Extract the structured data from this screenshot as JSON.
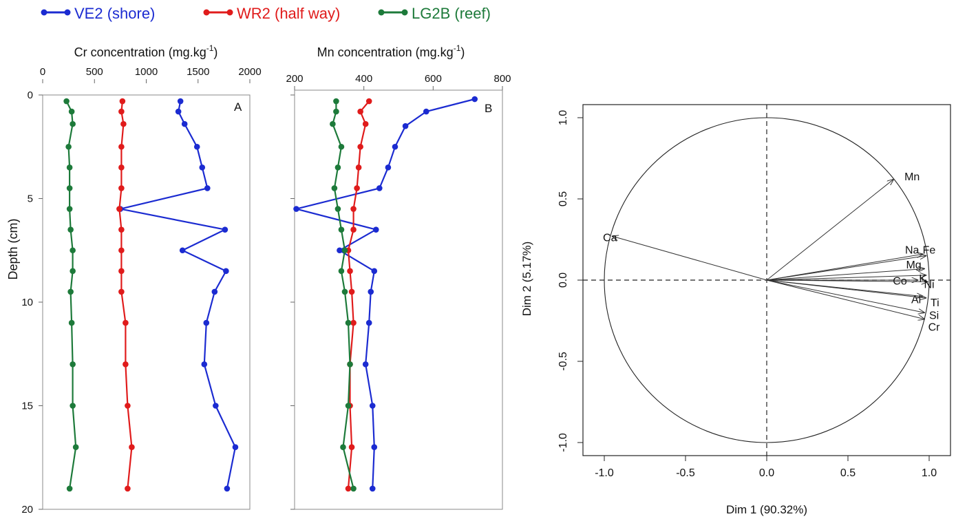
{
  "legend": {
    "items": [
      {
        "label": "VE2 (shore)",
        "color": "#1b2bd1"
      },
      {
        "label": "WR2 (half way)",
        "color": "#e01b1b"
      },
      {
        "label": "LG2B (reef)",
        "color": "#1d7a3a"
      }
    ]
  },
  "chart_data": [
    {
      "type": "line",
      "panel_label": "A",
      "title": "Cr concentration (mg.kg",
      "title_superscript": "-1",
      "title_suffix": ")",
      "xlabel": "",
      "ylabel": "Depth (cm)",
      "xlim": [
        0,
        2000
      ],
      "ylim": [
        20,
        0
      ],
      "xticks": [
        "0",
        "500",
        "1000",
        "1500",
        "2000"
      ],
      "yticks": [
        "0",
        "5",
        "10",
        "15",
        "20"
      ],
      "grid": false,
      "series": [
        {
          "name": "VE2 (shore)",
          "color": "#1b2bd1",
          "points": [
            [
              1330,
              0.3
            ],
            [
              1310,
              0.8
            ],
            [
              1370,
              1.4
            ],
            [
              1490,
              2.5
            ],
            [
              1540,
              3.5
            ],
            [
              1590,
              4.5
            ],
            [
              750,
              5.5
            ],
            [
              1760,
              6.5
            ],
            [
              1350,
              7.5
            ],
            [
              1770,
              8.5
            ],
            [
              1660,
              9.5
            ],
            [
              1580,
              11
            ],
            [
              1560,
              13
            ],
            [
              1670,
              15
            ],
            [
              1860,
              17
            ],
            [
              1780,
              19
            ]
          ]
        },
        {
          "name": "WR2 (half way)",
          "color": "#e01b1b",
          "points": [
            [
              770,
              0.3
            ],
            [
              760,
              0.8
            ],
            [
              780,
              1.4
            ],
            [
              760,
              2.5
            ],
            [
              760,
              3.5
            ],
            [
              760,
              4.5
            ],
            [
              740,
              5.5
            ],
            [
              760,
              6.5
            ],
            [
              760,
              7.5
            ],
            [
              760,
              8.5
            ],
            [
              760,
              9.5
            ],
            [
              800,
              11
            ],
            [
              800,
              13
            ],
            [
              820,
              15
            ],
            [
              860,
              17
            ],
            [
              820,
              19
            ]
          ]
        },
        {
          "name": "LG2B (reef)",
          "color": "#1d7a3a",
          "points": [
            [
              230,
              0.3
            ],
            [
              280,
              0.8
            ],
            [
              290,
              1.4
            ],
            [
              250,
              2.5
            ],
            [
              260,
              3.5
            ],
            [
              260,
              4.5
            ],
            [
              260,
              5.5
            ],
            [
              270,
              6.5
            ],
            [
              290,
              7.5
            ],
            [
              290,
              8.5
            ],
            [
              270,
              9.5
            ],
            [
              280,
              11
            ],
            [
              290,
              13
            ],
            [
              290,
              15
            ],
            [
              320,
              17
            ],
            [
              260,
              19
            ]
          ]
        }
      ]
    },
    {
      "type": "line",
      "panel_label": "B",
      "title": "Mn concentration (mg.kg",
      "title_superscript": "-1",
      "title_suffix": ")",
      "xlabel": "",
      "ylabel": "",
      "xlim": [
        200,
        800
      ],
      "ylim": [
        20,
        0
      ],
      "xticks": [
        "200",
        "400",
        "600",
        "800"
      ],
      "grid": false,
      "series": [
        {
          "name": "VE2 (shore)",
          "color": "#1b2bd1",
          "points": [
            [
              720,
              0.2
            ],
            [
              580,
              0.8
            ],
            [
              520,
              1.5
            ],
            [
              490,
              2.5
            ],
            [
              470,
              3.5
            ],
            [
              445,
              4.5
            ],
            [
              205,
              5.5
            ],
            [
              435,
              6.5
            ],
            [
              330,
              7.5
            ],
            [
              430,
              8.5
            ],
            [
              420,
              9.5
            ],
            [
              415,
              11
            ],
            [
              405,
              13
            ],
            [
              425,
              15
            ],
            [
              430,
              17
            ],
            [
              425,
              19
            ]
          ]
        },
        {
          "name": "WR2 (half way)",
          "color": "#e01b1b",
          "points": [
            [
              415,
              0.3
            ],
            [
              390,
              0.8
            ],
            [
              405,
              1.4
            ],
            [
              390,
              2.5
            ],
            [
              385,
              3.5
            ],
            [
              380,
              4.5
            ],
            [
              370,
              5.5
            ],
            [
              370,
              6.5
            ],
            [
              355,
              7.5
            ],
            [
              360,
              8.5
            ],
            [
              365,
              9.5
            ],
            [
              370,
              11
            ],
            [
              360,
              13
            ],
            [
              360,
              15
            ],
            [
              365,
              17
            ],
            [
              355,
              19
            ]
          ]
        },
        {
          "name": "LG2B (reef)",
          "color": "#1d7a3a",
          "points": [
            [
              320,
              0.3
            ],
            [
              320,
              0.8
            ],
            [
              310,
              1.4
            ],
            [
              335,
              2.5
            ],
            [
              325,
              3.5
            ],
            [
              315,
              4.5
            ],
            [
              325,
              5.5
            ],
            [
              335,
              6.5
            ],
            [
              345,
              7.5
            ],
            [
              335,
              8.5
            ],
            [
              345,
              9.5
            ],
            [
              355,
              11
            ],
            [
              360,
              13
            ],
            [
              355,
              15
            ],
            [
              340,
              17
            ],
            [
              370,
              19
            ]
          ]
        }
      ]
    },
    {
      "type": "scatter",
      "subtype": "pca-correlation-circle",
      "xlabel": "Dim 1 (90.32%)",
      "ylabel": "Dim 2 (5.17%)",
      "xlim": [
        -1.0,
        1.0
      ],
      "ylim": [
        -1.0,
        1.0
      ],
      "xticks": [
        "-1.0",
        "-0.5",
        "0.0",
        "0.5",
        "1.0"
      ],
      "yticks": [
        "-1.0",
        "-0.5",
        "0.0",
        "0.5",
        "1.0"
      ],
      "grid": false,
      "vectors": [
        {
          "label": "Mn",
          "x": 0.78,
          "y": 0.62,
          "lx": 0.895,
          "ly": 0.64
        },
        {
          "label": "Ca",
          "x": -0.95,
          "y": 0.27,
          "lx": -0.965,
          "ly": 0.265
        },
        {
          "label": "Na",
          "x": 0.96,
          "y": 0.16,
          "lx": 0.895,
          "ly": 0.188
        },
        {
          "label": "Fe",
          "x": 0.98,
          "y": 0.15,
          "lx": 1.0,
          "ly": 0.188
        },
        {
          "label": "Mg",
          "x": 0.97,
          "y": 0.07,
          "lx": 0.905,
          "ly": 0.097
        },
        {
          "label": "K",
          "x": 0.98,
          "y": 0.03,
          "lx": 0.96,
          "ly": 0.012
        },
        {
          "label": "Co",
          "x": 0.93,
          "y": 0.0,
          "lx": 0.82,
          "ly": -0.003
        },
        {
          "label": "Ni",
          "x": 0.99,
          "y": -0.01,
          "lx": 1.0,
          "ly": -0.024
        },
        {
          "label": "Al",
          "x": 0.96,
          "y": -0.1,
          "lx": 0.92,
          "ly": -0.117
        },
        {
          "label": "Ti",
          "x": 0.98,
          "y": -0.11,
          "lx": 1.035,
          "ly": -0.135
        },
        {
          "label": "Si",
          "x": 0.97,
          "y": -0.2,
          "lx": 1.03,
          "ly": -0.213
        },
        {
          "label": "Cr",
          "x": 0.97,
          "y": -0.24,
          "lx": 1.03,
          "ly": -0.285
        }
      ]
    }
  ]
}
